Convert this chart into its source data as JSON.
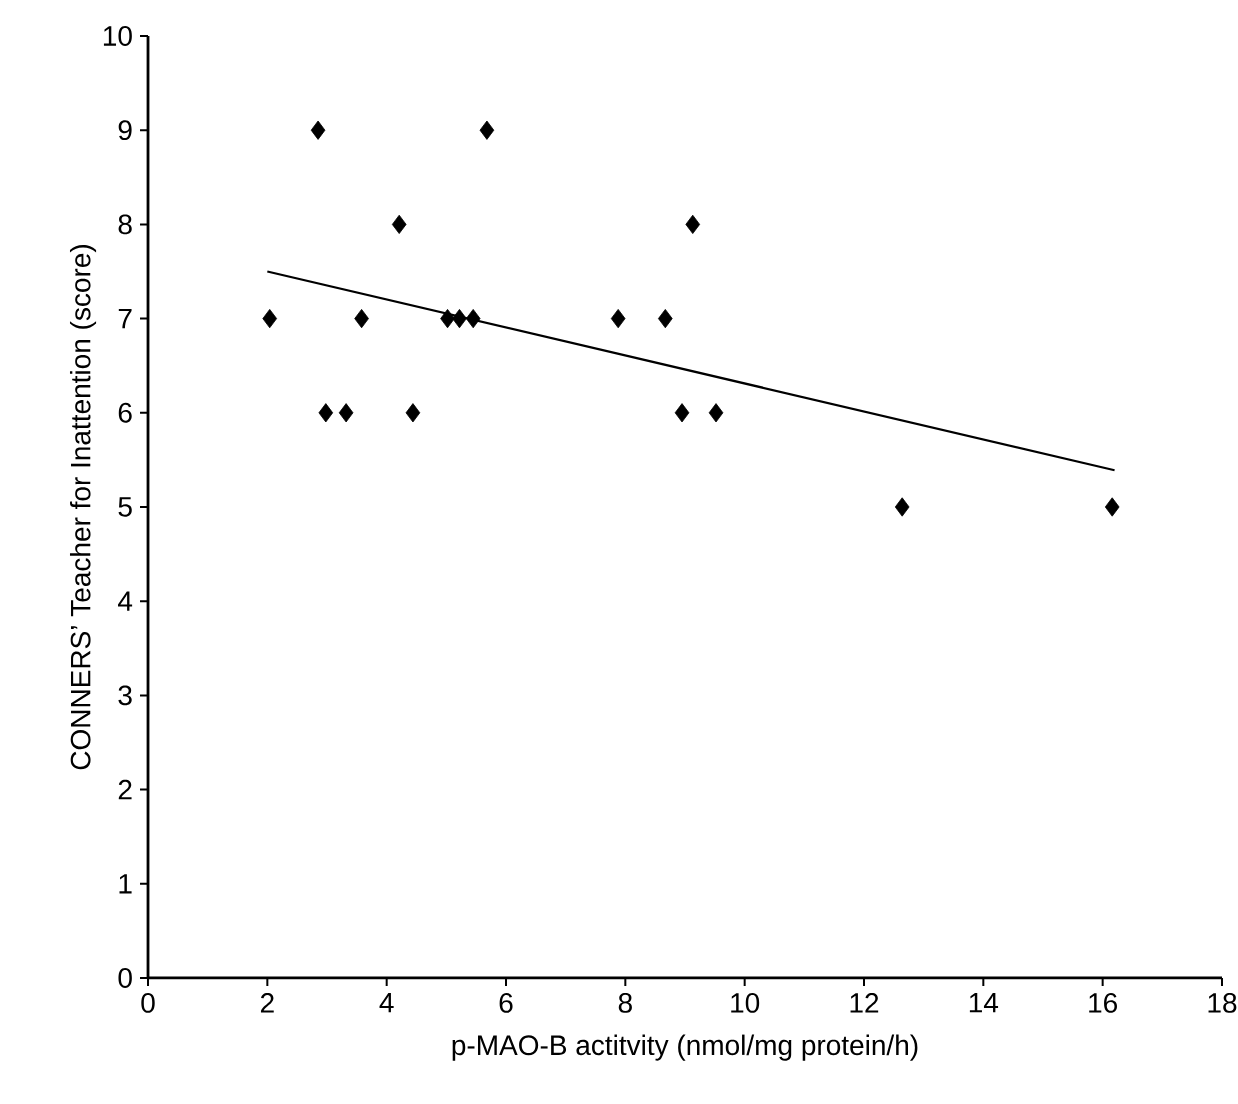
{
  "chart_data": {
    "type": "scatter",
    "xlabel": "p-MAO-B actitvity (nmol/mg protein/h)",
    "ylabel": "CONNERS’ Teacher for Inattention (score)",
    "series": [
      {
        "color": "#000000",
        "marker": "diamond",
        "x": [
          2.04,
          2.85,
          2.98,
          3.32,
          3.58,
          4.21,
          4.44,
          5.02,
          5.22,
          5.45,
          5.68,
          7.88,
          8.67,
          8.95,
          9.13,
          9.52,
          12.64,
          16.16
        ],
        "values": [
          7,
          9,
          6,
          6,
          7,
          8,
          6,
          7,
          7,
          7,
          9,
          7,
          7,
          6,
          8,
          6,
          5,
          5
        ]
      },
      {
        "type": "line",
        "color": "#000000",
        "marker": "none",
        "x": [
          2.0,
          16.2
        ],
        "values": [
          7.5,
          5.39
        ]
      }
    ],
    "xlim": [
      0,
      18
    ],
    "ylim": [
      0,
      10
    ],
    "xticks": [
      0,
      2,
      4,
      6,
      8,
      10,
      12,
      14,
      16,
      18
    ],
    "yticks": [
      0,
      1,
      2,
      3,
      4,
      5,
      6,
      7,
      8,
      9,
      10
    ],
    "grid": false
  }
}
